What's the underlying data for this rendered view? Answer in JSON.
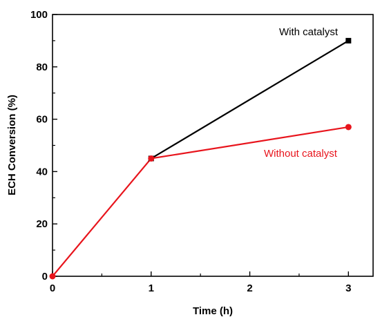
{
  "chart_data": {
    "type": "line",
    "xlabel": "Time (h)",
    "ylabel": "ECH Conversion (%)",
    "xlim": [
      0,
      3.25
    ],
    "ylim": [
      0,
      100
    ],
    "xticks": [
      0,
      1,
      2,
      3
    ],
    "yticks": [
      0,
      20,
      40,
      60,
      80,
      100
    ],
    "grid": false,
    "series": [
      {
        "name": "With catalyst",
        "color": "#000000",
        "marker": "square",
        "points": [
          [
            1,
            45
          ],
          [
            3,
            90
          ]
        ]
      },
      {
        "name": "Without catalyst",
        "color": "#e8141c",
        "marker": "circle",
        "points": [
          [
            0,
            0
          ],
          [
            1,
            45
          ],
          [
            3,
            57
          ]
        ]
      }
    ]
  }
}
